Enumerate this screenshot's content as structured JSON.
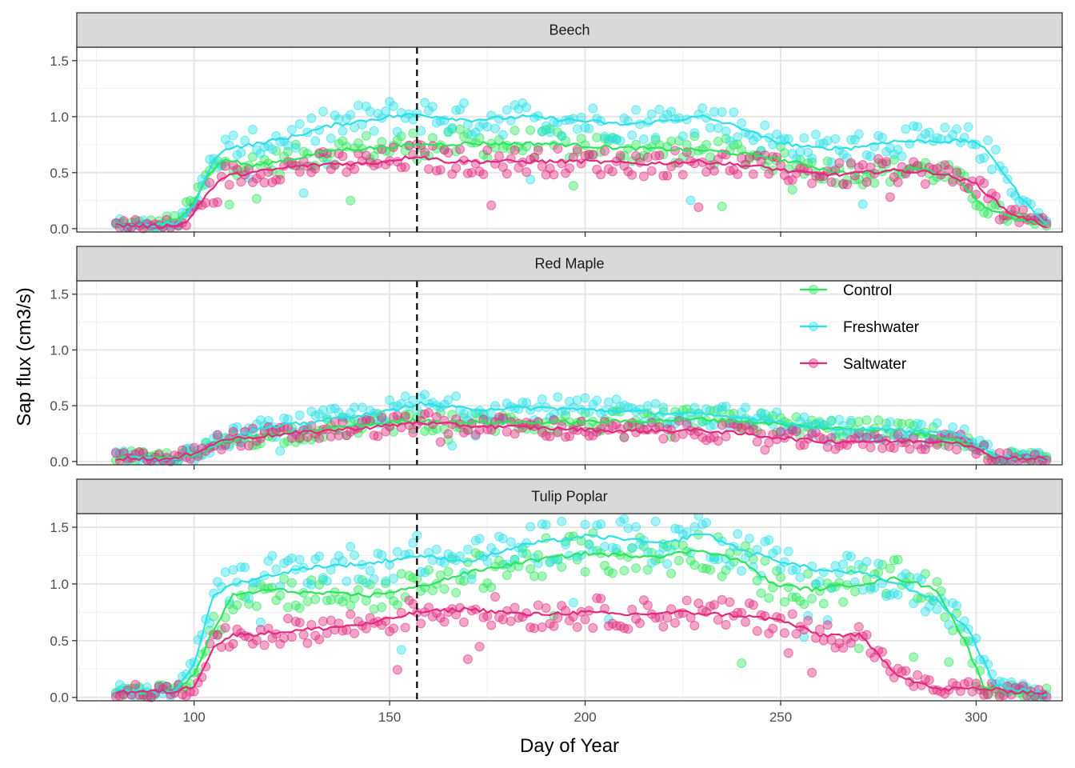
{
  "chart_data": {
    "type": "scatter",
    "facets": [
      "Beech",
      "Red Maple",
      "Tulip Poplar"
    ],
    "xlabel": "Day of Year",
    "ylabel": "Sap flux (cm3/s)",
    "xlim": [
      70,
      322
    ],
    "ylim": [
      -0.03,
      1.62
    ],
    "x_ticks": [
      100,
      150,
      200,
      250,
      300
    ],
    "y_ticks": [
      0.0,
      0.5,
      1.0,
      1.5
    ],
    "x_tick_labels": [
      "100",
      "150",
      "200",
      "250",
      "300"
    ],
    "y_tick_labels": [
      "0.0",
      "0.5",
      "1.0",
      "1.5"
    ],
    "vline_x": 157,
    "grid": true,
    "legend_position": "inside-right (Red Maple panel)",
    "series_style": [
      {
        "name": "Control",
        "color": "#2BE65A"
      },
      {
        "name": "Freshwater",
        "color": "#2BE0E8"
      },
      {
        "name": "Saltwater",
        "color": "#E3287E"
      }
    ],
    "panels": [
      {
        "facet": "Beech",
        "series": [
          {
            "name": "Control",
            "smooth": [
              [
                80,
                0.03
              ],
              [
                90,
                0.03
              ],
              [
                96,
                0.08
              ],
              [
                100,
                0.25
              ],
              [
                104,
                0.5
              ],
              [
                108,
                0.62
              ],
              [
                115,
                0.56
              ],
              [
                125,
                0.62
              ],
              [
                135,
                0.7
              ],
              [
                150,
                0.73
              ],
              [
                157,
                0.75
              ],
              [
                170,
                0.76
              ],
              [
                190,
                0.76
              ],
              [
                210,
                0.72
              ],
              [
                230,
                0.7
              ],
              [
                245,
                0.65
              ],
              [
                255,
                0.58
              ],
              [
                265,
                0.5
              ],
              [
                275,
                0.5
              ],
              [
                285,
                0.55
              ],
              [
                295,
                0.45
              ],
              [
                302,
                0.2
              ],
              [
                310,
                0.08
              ],
              [
                318,
                0.03
              ]
            ]
          },
          {
            "name": "Freshwater",
            "smooth": [
              [
                80,
                0.03
              ],
              [
                90,
                0.03
              ],
              [
                96,
                0.05
              ],
              [
                100,
                0.2
              ],
              [
                104,
                0.55
              ],
              [
                108,
                0.72
              ],
              [
                115,
                0.75
              ],
              [
                125,
                0.82
              ],
              [
                135,
                0.92
              ],
              [
                150,
                1.0
              ],
              [
                157,
                1.02
              ],
              [
                170,
                0.97
              ],
              [
                185,
                1.0
              ],
              [
                200,
                0.96
              ],
              [
                210,
                0.93
              ],
              [
                220,
                0.96
              ],
              [
                230,
                1.0
              ],
              [
                240,
                0.9
              ],
              [
                248,
                0.78
              ],
              [
                258,
                0.72
              ],
              [
                268,
                0.72
              ],
              [
                278,
                0.78
              ],
              [
                290,
                0.78
              ],
              [
                300,
                0.78
              ],
              [
                305,
                0.6
              ],
              [
                312,
                0.25
              ],
              [
                318,
                0.05
              ]
            ]
          },
          {
            "name": "Saltwater",
            "smooth": [
              [
                80,
                0.03
              ],
              [
                92,
                0.02
              ],
              [
                98,
                0.05
              ],
              [
                103,
                0.3
              ],
              [
                108,
                0.47
              ],
              [
                115,
                0.5
              ],
              [
                125,
                0.55
              ],
              [
                135,
                0.58
              ],
              [
                145,
                0.58
              ],
              [
                157,
                0.65
              ],
              [
                165,
                0.6
              ],
              [
                180,
                0.6
              ],
              [
                200,
                0.6
              ],
              [
                215,
                0.58
              ],
              [
                230,
                0.6
              ],
              [
                245,
                0.55
              ],
              [
                255,
                0.5
              ],
              [
                265,
                0.48
              ],
              [
                278,
                0.52
              ],
              [
                290,
                0.5
              ],
              [
                300,
                0.4
              ],
              [
                308,
                0.15
              ],
              [
                318,
                0.02
              ]
            ]
          }
        ]
      },
      {
        "facet": "Red Maple",
        "series": [
          {
            "name": "Control",
            "smooth": [
              [
                80,
                0.03
              ],
              [
                95,
                0.03
              ],
              [
                100,
                0.06
              ],
              [
                108,
                0.18
              ],
              [
                115,
                0.22
              ],
              [
                125,
                0.25
              ],
              [
                135,
                0.3
              ],
              [
                150,
                0.35
              ],
              [
                157,
                0.37
              ],
              [
                170,
                0.35
              ],
              [
                190,
                0.35
              ],
              [
                210,
                0.36
              ],
              [
                230,
                0.38
              ],
              [
                245,
                0.35
              ],
              [
                260,
                0.3
              ],
              [
                280,
                0.28
              ],
              [
                295,
                0.2
              ],
              [
                305,
                0.04
              ],
              [
                318,
                0.02
              ]
            ]
          },
          {
            "name": "Freshwater",
            "smooth": [
              [
                80,
                0.03
              ],
              [
                95,
                0.03
              ],
              [
                100,
                0.07
              ],
              [
                108,
                0.2
              ],
              [
                115,
                0.28
              ],
              [
                125,
                0.33
              ],
              [
                135,
                0.38
              ],
              [
                150,
                0.45
              ],
              [
                157,
                0.52
              ],
              [
                170,
                0.47
              ],
              [
                190,
                0.48
              ],
              [
                210,
                0.45
              ],
              [
                230,
                0.42
              ],
              [
                245,
                0.38
              ],
              [
                260,
                0.3
              ],
              [
                280,
                0.28
              ],
              [
                295,
                0.25
              ],
              [
                305,
                0.05
              ],
              [
                318,
                0.02
              ]
            ]
          },
          {
            "name": "Saltwater",
            "smooth": [
              [
                80,
                0.03
              ],
              [
                95,
                0.02
              ],
              [
                100,
                0.08
              ],
              [
                108,
                0.2
              ],
              [
                115,
                0.22
              ],
              [
                125,
                0.25
              ],
              [
                135,
                0.28
              ],
              [
                150,
                0.32
              ],
              [
                157,
                0.35
              ],
              [
                170,
                0.32
              ],
              [
                190,
                0.3
              ],
              [
                210,
                0.27
              ],
              [
                230,
                0.28
              ],
              [
                245,
                0.23
              ],
              [
                260,
                0.18
              ],
              [
                280,
                0.18
              ],
              [
                295,
                0.18
              ],
              [
                305,
                0.04
              ],
              [
                318,
                0.02
              ]
            ]
          }
        ]
      },
      {
        "facet": "Tulip Poplar",
        "series": [
          {
            "name": "Control",
            "smooth": [
              [
                80,
                0.05
              ],
              [
                95,
                0.05
              ],
              [
                100,
                0.2
              ],
              [
                105,
                0.6
              ],
              [
                110,
                0.9
              ],
              [
                120,
                0.95
              ],
              [
                130,
                0.92
              ],
              [
                145,
                0.9
              ],
              [
                157,
                0.97
              ],
              [
                170,
                1.1
              ],
              [
                185,
                1.2
              ],
              [
                200,
                1.27
              ],
              [
                210,
                1.25
              ],
              [
                220,
                1.25
              ],
              [
                230,
                1.3
              ],
              [
                240,
                1.2
              ],
              [
                248,
                1.0
              ],
              [
                258,
                0.95
              ],
              [
                270,
                1.0
              ],
              [
                280,
                1.05
              ],
              [
                290,
                0.95
              ],
              [
                297,
                0.5
              ],
              [
                302,
                0.1
              ],
              [
                310,
                0.04
              ],
              [
                318,
                0.03
              ]
            ]
          },
          {
            "name": "Freshwater",
            "smooth": [
              [
                80,
                0.05
              ],
              [
                95,
                0.05
              ],
              [
                100,
                0.3
              ],
              [
                105,
                0.9
              ],
              [
                110,
                1.0
              ],
              [
                120,
                1.08
              ],
              [
                130,
                1.15
              ],
              [
                145,
                1.18
              ],
              [
                157,
                1.25
              ],
              [
                170,
                1.2
              ],
              [
                185,
                1.35
              ],
              [
                200,
                1.42
              ],
              [
                210,
                1.4
              ],
              [
                220,
                1.35
              ],
              [
                230,
                1.45
              ],
              [
                240,
                1.3
              ],
              [
                250,
                1.2
              ],
              [
                260,
                1.12
              ],
              [
                270,
                1.1
              ],
              [
                280,
                1.0
              ],
              [
                290,
                0.85
              ],
              [
                298,
                0.6
              ],
              [
                305,
                0.1
              ],
              [
                318,
                0.03
              ]
            ]
          },
          {
            "name": "Saltwater",
            "smooth": [
              [
                80,
                0.05
              ],
              [
                95,
                0.05
              ],
              [
                100,
                0.1
              ],
              [
                105,
                0.45
              ],
              [
                110,
                0.55
              ],
              [
                120,
                0.57
              ],
              [
                130,
                0.6
              ],
              [
                145,
                0.65
              ],
              [
                157,
                0.75
              ],
              [
                170,
                0.78
              ],
              [
                185,
                0.73
              ],
              [
                200,
                0.75
              ],
              [
                210,
                0.73
              ],
              [
                225,
                0.75
              ],
              [
                240,
                0.72
              ],
              [
                250,
                0.68
              ],
              [
                260,
                0.55
              ],
              [
                270,
                0.55
              ],
              [
                280,
                0.2
              ],
              [
                290,
                0.07
              ],
              [
                300,
                0.08
              ],
              [
                310,
                0.05
              ],
              [
                318,
                0.04
              ]
            ]
          }
        ]
      }
    ]
  }
}
